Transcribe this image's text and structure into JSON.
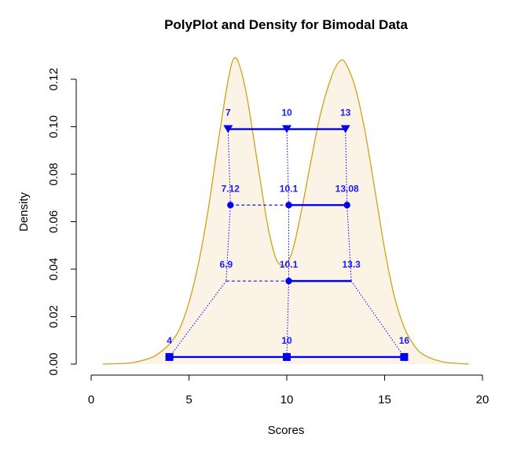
{
  "chart_data": {
    "type": "line",
    "title": "PolyPlot and Density for Bimodal Data",
    "xlabel": "Scores",
    "ylabel": "Density",
    "xlim": [
      0,
      20
    ],
    "ylim": [
      0,
      0.12
    ],
    "xticks": [
      0,
      5,
      10,
      15,
      20
    ],
    "yticks": [
      0.0,
      0.02,
      0.04,
      0.06,
      0.08,
      0.1,
      0.12
    ],
    "ytick_labels": [
      "0.00",
      "0.02",
      "0.04",
      "0.06",
      "0.08",
      "0.10",
      "0.12"
    ],
    "grid": false,
    "colors": {
      "density_line": "#d4a017",
      "density_fill": "#faf3e6",
      "polyplot": "#0000ee",
      "labels": "#1a1aff"
    },
    "density_curve": [
      [
        0.6,
        0.0
      ],
      [
        2.0,
        0.0005
      ],
      [
        3.0,
        0.0025
      ],
      [
        3.5,
        0.0048
      ],
      [
        4.0,
        0.0085
      ],
      [
        4.5,
        0.0145
      ],
      [
        5.0,
        0.026
      ],
      [
        5.5,
        0.043
      ],
      [
        6.0,
        0.066
      ],
      [
        6.5,
        0.094
      ],
      [
        7.0,
        0.1195
      ],
      [
        7.3,
        0.1288
      ],
      [
        7.6,
        0.1255
      ],
      [
        8.0,
        0.111
      ],
      [
        8.5,
        0.085
      ],
      [
        9.0,
        0.0595
      ],
      [
        9.4,
        0.0455
      ],
      [
        9.7,
        0.0418
      ],
      [
        10.0,
        0.0425
      ],
      [
        10.3,
        0.048
      ],
      [
        10.7,
        0.0625
      ],
      [
        11.2,
        0.084
      ],
      [
        11.7,
        0.1045
      ],
      [
        12.3,
        0.1215
      ],
      [
        12.7,
        0.1275
      ],
      [
        13.0,
        0.1268
      ],
      [
        13.5,
        0.1165
      ],
      [
        14.0,
        0.098
      ],
      [
        14.5,
        0.0735
      ],
      [
        15.0,
        0.0485
      ],
      [
        15.5,
        0.0285
      ],
      [
        16.0,
        0.0155
      ],
      [
        16.5,
        0.008
      ],
      [
        17.0,
        0.0039
      ],
      [
        18.0,
        0.0009
      ],
      [
        19.3,
        0.0
      ]
    ],
    "polyplot_rows": [
      {
        "name": "q1",
        "y": 0.099,
        "points": [
          7,
          10,
          13
        ],
        "labels": [
          "7",
          "10",
          "13"
        ],
        "marker": "triangle-down",
        "segments": [
          "solid",
          "solid"
        ]
      },
      {
        "name": "q2",
        "y": 0.067,
        "points": [
          7.12,
          10.1,
          13.08
        ],
        "labels": [
          "7.12",
          "10.1",
          "13.08"
        ],
        "marker": "circle",
        "segments": [
          "dashed",
          "solid"
        ]
      },
      {
        "name": "q3",
        "y": 0.035,
        "points": [
          6.9,
          10.1,
          13.3
        ],
        "labels": [
          "6.9",
          "10.1",
          "13.3"
        ],
        "marker": "circle-center",
        "segments": [
          "dashed",
          "solid"
        ]
      },
      {
        "name": "q4",
        "y": 0.003,
        "points": [
          4,
          10,
          16
        ],
        "labels": [
          "4",
          "10",
          "16"
        ],
        "marker": "square",
        "segments": [
          "solid",
          "solid"
        ]
      }
    ]
  }
}
